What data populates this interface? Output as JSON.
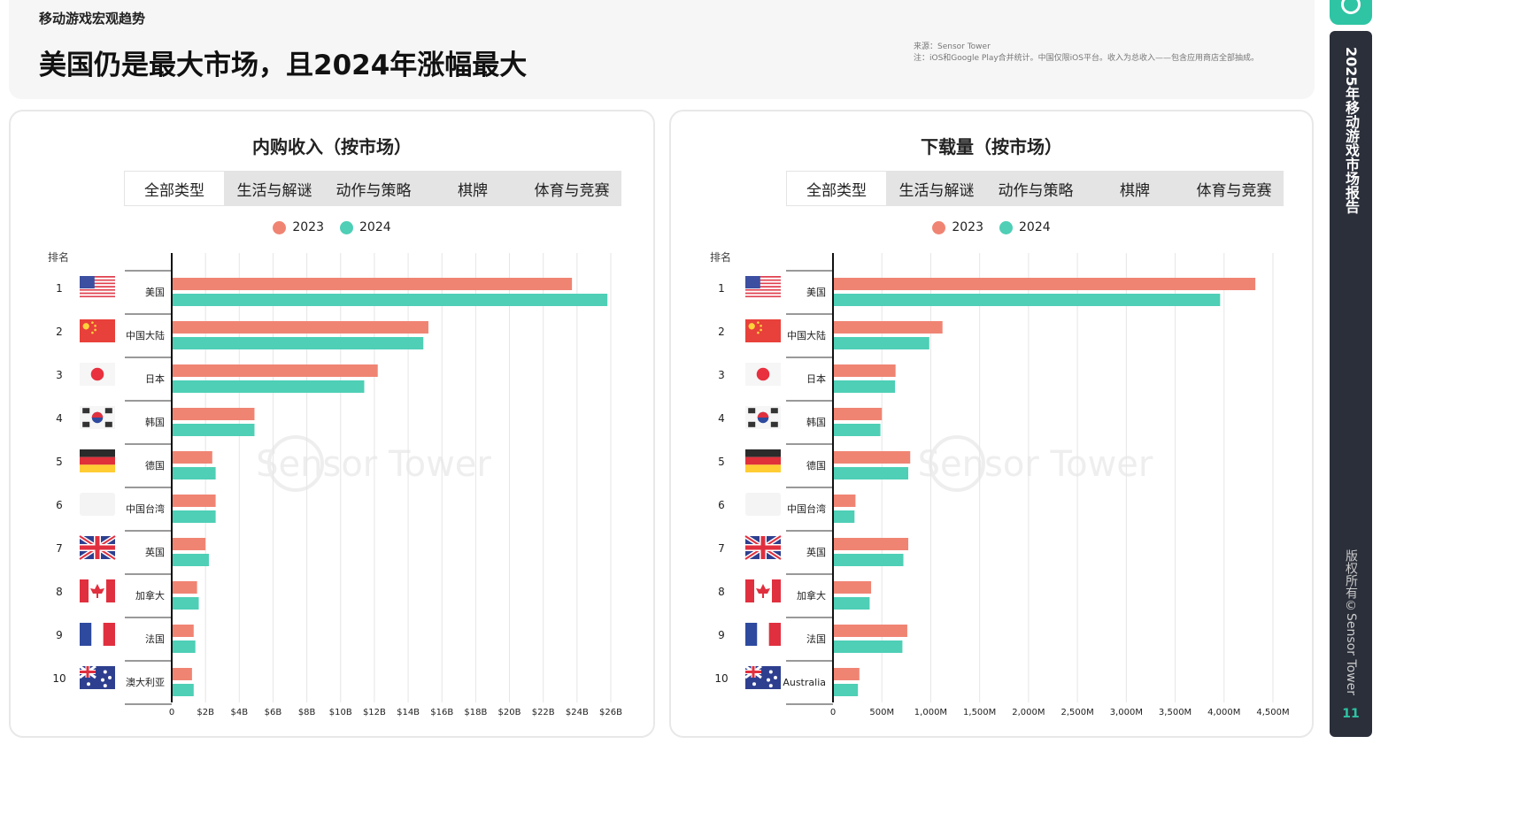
{
  "header": {
    "kicker": "移动游戏宏观趋势",
    "title": "美国仍是最大市场，且2024年涨幅最大",
    "source_line1": "来源：Sensor Tower",
    "source_line2": "注：iOS和Google Play合并统计。中国仅限iOS平台。收入为总收入——包含应用商店全部抽成。"
  },
  "tabs": [
    "全部类型",
    "生活与解谜",
    "动作与策略",
    "棋牌",
    "体育与竞赛"
  ],
  "legend": [
    {
      "label": "2023",
      "color": "#f08473"
    },
    {
      "label": "2024",
      "color": "#4ecfb6"
    }
  ],
  "rank_label": "排名",
  "watermark": "Sensor Tower",
  "sidebar": {
    "title": "2025年移动游戏市场报告",
    "copyright": "版权所有©Sensor Tower",
    "page": "11"
  },
  "chart_data": [
    {
      "type": "bar",
      "orientation": "horizontal",
      "title": "内购收入（按市场）",
      "ranks": [
        "1",
        "2",
        "3",
        "4",
        "5",
        "6",
        "7",
        "8",
        "9",
        "10"
      ],
      "categories": [
        "美国",
        "中国大陆",
        "日本",
        "韩国",
        "德国",
        "中国台湾",
        "英国",
        "加拿大",
        "法国",
        "澳大利亚"
      ],
      "flags": [
        "us",
        "cn",
        "jp",
        "kr",
        "de",
        "tw",
        "gb",
        "ca",
        "fr",
        "au"
      ],
      "series": [
        {
          "name": "2023",
          "values": [
            23.7,
            15.2,
            12.2,
            4.9,
            2.4,
            2.6,
            2.0,
            1.5,
            1.3,
            1.2
          ]
        },
        {
          "name": "2024",
          "values": [
            25.8,
            14.9,
            11.4,
            4.9,
            2.6,
            2.6,
            2.2,
            1.6,
            1.4,
            1.3
          ]
        }
      ],
      "xlim": [
        0,
        26
      ],
      "xticks": [
        0,
        2,
        4,
        6,
        8,
        10,
        12,
        14,
        16,
        18,
        20,
        22,
        24,
        26
      ],
      "xtick_labels": [
        "0",
        "$2B",
        "$4B",
        "$6B",
        "$8B",
        "$10B",
        "$12B",
        "$14B",
        "$16B",
        "$18B",
        "$20B",
        "$22B",
        "$24B",
        "$26B"
      ],
      "grid": true
    },
    {
      "type": "bar",
      "orientation": "horizontal",
      "title": "下载量（按市场）",
      "ranks": [
        "1",
        "2",
        "3",
        "4",
        "5",
        "6",
        "7",
        "8",
        "9",
        "10"
      ],
      "categories": [
        "美国",
        "中国大陆",
        "日本",
        "韩国",
        "德国",
        "中国台湾",
        "英国",
        "加拿大",
        "法国",
        "Australia"
      ],
      "flags": [
        "us",
        "cn",
        "jp",
        "kr",
        "de",
        "none",
        "gb",
        "ca",
        "fr",
        "au"
      ],
      "series": [
        {
          "name": "2023",
          "values": [
            4320,
            1120,
            640,
            500,
            790,
            230,
            770,
            390,
            760,
            270
          ]
        },
        {
          "name": "2024",
          "values": [
            3960,
            985,
            635,
            485,
            770,
            220,
            720,
            375,
            710,
            255
          ]
        }
      ],
      "xlim": [
        0,
        4500
      ],
      "xticks": [
        0,
        500,
        1000,
        1500,
        2000,
        2500,
        3000,
        3500,
        4000,
        4500
      ],
      "xtick_labels": [
        "0",
        "500M",
        "1,000M",
        "1,500M",
        "2,000M",
        "2,500M",
        "3,000M",
        "3,500M",
        "4,000M",
        "4,500M"
      ],
      "grid": true
    }
  ]
}
